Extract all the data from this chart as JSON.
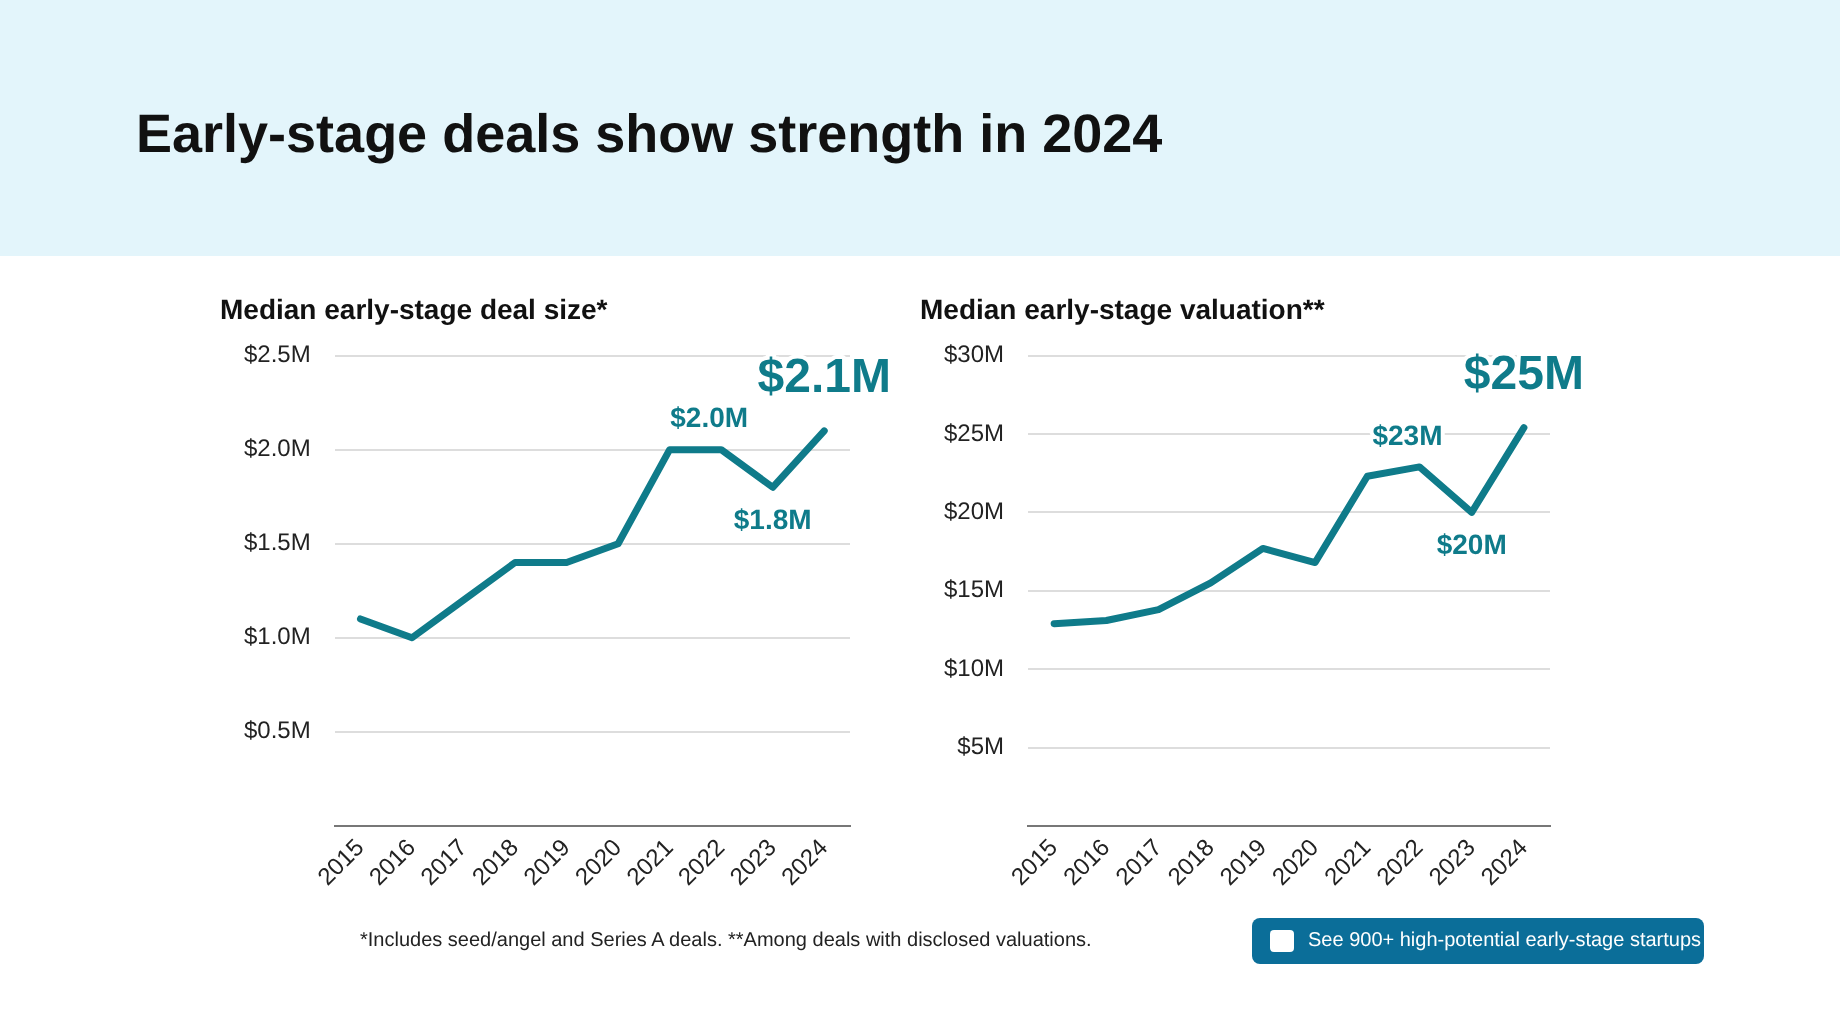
{
  "chart_data": [
    {
      "type": "line",
      "title": "Median early-stage deal size*",
      "categories": [
        "2015",
        "2016",
        "2017",
        "2018",
        "2019",
        "2020",
        "2021",
        "2022",
        "2023",
        "2024"
      ],
      "series": [
        {
          "color": "#0f7b8a",
          "values": [
            1.1,
            1.0,
            1.2,
            1.4,
            1.4,
            1.5,
            2.0,
            2.0,
            1.8,
            2.1
          ],
          "value_labels": [
            null,
            null,
            null,
            null,
            null,
            null,
            null,
            "$2.0M",
            "$1.8M",
            "$2.1M"
          ]
        }
      ],
      "ylim": [
        0,
        2.5
      ],
      "yticks": [
        {
          "value": 0.5,
          "label": "$0.5M"
        },
        {
          "value": 1.0,
          "label": "$1.0M"
        },
        {
          "value": 1.5,
          "label": "$1.5M"
        },
        {
          "value": 2.0,
          "label": "$2.0M"
        },
        {
          "value": 2.5,
          "label": "$2.5M"
        }
      ],
      "grid": "y",
      "marker": "none",
      "line_style": "solid",
      "annotations": [
        "Early-stage deals show strength in 2024"
      ]
    },
    {
      "type": "line",
      "title": "Median early-stage valuation**",
      "categories": [
        "2015",
        "2016",
        "2017",
        "2018",
        "2019",
        "2020",
        "2021",
        "2022",
        "2023",
        "2024"
      ],
      "series": [
        {
          "color": "#0f7b8a",
          "values": [
            12.9,
            13.1,
            13.8,
            15.5,
            17.7,
            16.8,
            22.3,
            22.9,
            20.0,
            25.4
          ],
          "value_labels": [
            null,
            null,
            null,
            null,
            null,
            null,
            null,
            "$23M",
            "$20M",
            "$25M"
          ]
        }
      ],
      "ylim": [
        0,
        30
      ],
      "yticks": [
        {
          "value": 5,
          "label": "$5M"
        },
        {
          "value": 10,
          "label": "$10M"
        },
        {
          "value": 15,
          "label": "$15M"
        },
        {
          "value": 20,
          "label": "$20M"
        },
        {
          "value": 25,
          "label": "$25M"
        },
        {
          "value": 30,
          "label": "$30M"
        }
      ],
      "grid": "y",
      "marker": "none",
      "line_style": "solid",
      "annotations": [
        "*Includes seed/angel and Series A deals. **Among deals with disclosed valuations.",
        "See 900+ high-potential early-stage startups"
      ]
    }
  ]
}
